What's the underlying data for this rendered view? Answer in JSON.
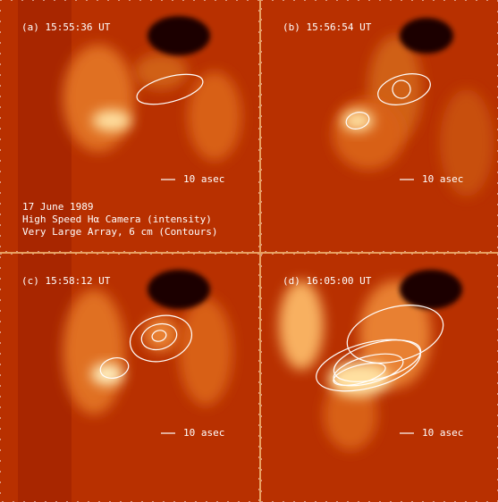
{
  "panels": [
    {
      "label": "(a) 15:55:36 UT",
      "scale_label": "10 asec",
      "caption": [
        "17 June 1989",
        "High Speed Hα Camera (intensity)",
        "Very Large Array, 6 cm (Contours)"
      ]
    },
    {
      "label": "(b) 15:56:54 UT",
      "scale_label": "10 asec"
    },
    {
      "label": "(c) 15:58:12 UT",
      "scale_label": "10 asec"
    },
    {
      "label": "(d) 16:05:00 UT",
      "scale_label": "10 asec"
    }
  ]
}
